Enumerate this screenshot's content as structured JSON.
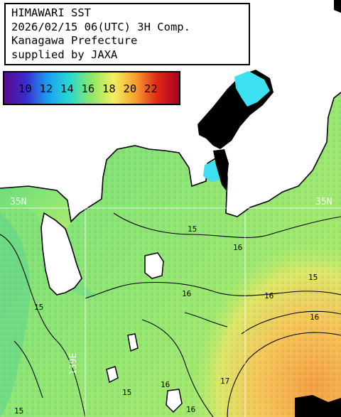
{
  "header": {
    "line1": "HIMAWARI SST",
    "line2": "2026/02/15 06(UTC) 3H Comp.",
    "line3": "Kanagawa Prefecture",
    "line4": "supplied by JAXA"
  },
  "legend": {
    "ticks": [
      "10",
      "12",
      "14",
      "16",
      "18",
      "20",
      "22"
    ],
    "colors": [
      "#5a0a8c",
      "#3a2cd0",
      "#1aa0f0",
      "#2ad8d0",
      "#8ce868",
      "#f4f060",
      "#f8a030",
      "#e02818",
      "#a80020"
    ]
  },
  "grid": {
    "lat_label": "35N",
    "lon_label": "139E"
  },
  "contours": [
    "15",
    "15",
    "16",
    "16",
    "16",
    "16",
    "17",
    "15",
    "16",
    "15",
    "15",
    "16"
  ],
  "colors": {
    "sea_green": "#7ee07a",
    "sea_light": "#a8f070",
    "sea_warm": "#f8d060",
    "sea_orange": "#f4b050",
    "land": "#ffffff",
    "cloud": "#000000",
    "cyan": "#3ce0f0"
  }
}
